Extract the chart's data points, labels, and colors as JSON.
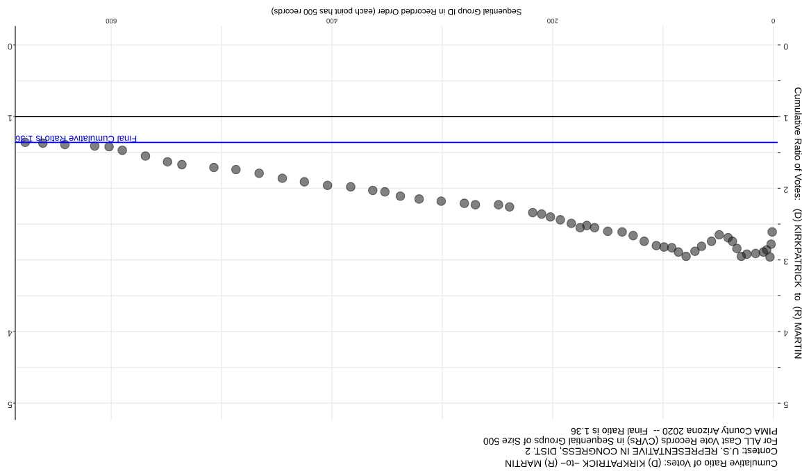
{
  "chart_data": {
    "type": "scatter",
    "title": "Cumulative Ratio of Votes: (D) KIRKPATRICK −to− (R) MARTIN",
    "subtitle": "Contest: U.S. REPRESENTATIVE IN CONGRESS, DIST. 2\nFor ALL Cast Vote Records (CVRs) in Sequential Groups of Size 500\nPIMA County Arizona 2020 --  Final Ratio is 1.36",
    "xlabel": "Sequential Group ID in Recorded Order (each point has 500 records)",
    "ylabel": "Cumulative Ratio of Votes:   (D) KIRKPATRICK  to  (R) MARTIN",
    "series": [
      {
        "color": "#1a1a1a",
        "x": [
          1,
          2,
          3,
          6,
          9,
          16,
          24,
          29,
          33,
          37,
          41,
          49,
          56,
          65,
          71,
          79,
          86,
          92,
          99,
          106,
          117,
          127,
          137,
          150,
          162,
          169,
          175,
          183,
          193,
          202,
          210,
          218,
          239,
          249,
          270,
          280,
          301,
          321,
          338,
          352,
          363,
          383,
          404,
          425,
          445,
          466,
          487,
          507,
          536,
          549,
          569,
          590,
          602,
          615,
          642,
          662,
          678
        ],
        "values": [
          2.61,
          2.78,
          2.96,
          2.86,
          2.89,
          2.91,
          2.92,
          2.95,
          2.84,
          2.74,
          2.69,
          2.65,
          2.74,
          2.81,
          2.88,
          2.95,
          2.89,
          2.83,
          2.82,
          2.8,
          2.74,
          2.66,
          2.61,
          2.6,
          2.55,
          2.52,
          2.55,
          2.49,
          2.44,
          2.4,
          2.36,
          2.34,
          2.26,
          2.23,
          2.23,
          2.21,
          2.18,
          2.15,
          2.11,
          2.05,
          2.03,
          1.98,
          1.96,
          1.91,
          1.86,
          1.79,
          1.74,
          1.71,
          1.67,
          1.63,
          1.55,
          1.47,
          1.42,
          1.41,
          1.39,
          1.37,
          1.36
        ]
      }
    ],
    "marker": "circle",
    "xlim": [
      687,
      -4
    ],
    "xticks": [
      0,
      {
        "value": 100,
        "label": null
      },
      200,
      {
        "value": 300,
        "label": null
      },
      400,
      {
        "value": 500,
        "label": null
      },
      600
    ],
    "ylim": [
      5.23,
      -0.26
    ],
    "yticks": [
      0,
      {
        "value": 0.5,
        "label": null
      },
      1,
      {
        "value": 1.5,
        "label": null
      },
      2,
      {
        "value": 2.5,
        "label": null
      },
      3,
      {
        "value": 3.5,
        "label": null
      },
      4,
      {
        "value": 4.5,
        "label": null
      },
      5
    ],
    "y2lim": [
      5.23,
      -0.26
    ],
    "y2ticks": [
      0,
      1,
      4,
      5
    ],
    "ref_lines": [
      {
        "axis": "y",
        "value": 1,
        "color": "#000000"
      },
      {
        "axis": "y",
        "value": 1.36,
        "label": "Final Cumulative Ratio is 1.36",
        "color": "#0000ff"
      }
    ],
    "grid": true,
    "legend": false
  }
}
